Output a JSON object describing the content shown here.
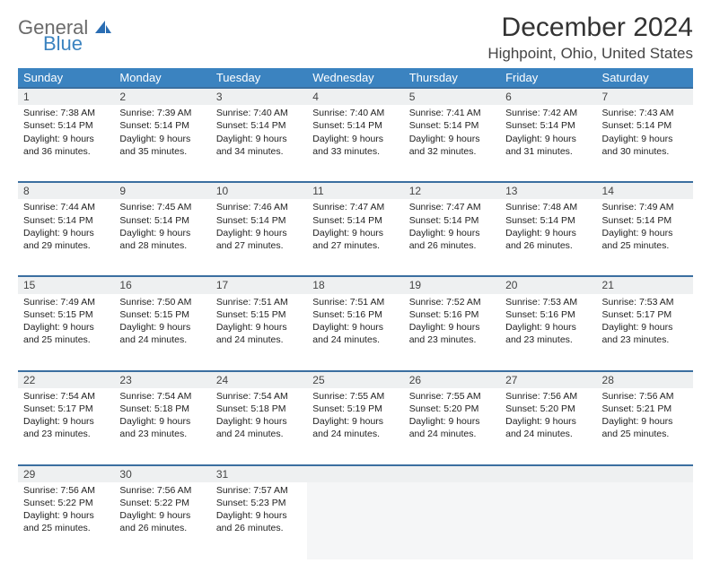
{
  "logo": {
    "line1": "General",
    "line2": "Blue"
  },
  "title": "December 2024",
  "location": "Highpoint, Ohio, United States",
  "colors": {
    "header_bg": "#3b83c0",
    "header_text": "#ffffff",
    "row_divider": "#3b6fa0",
    "daynum_bg": "#eef0f1",
    "body_text": "#222222",
    "page_bg": "#ffffff"
  },
  "dayHeaders": [
    "Sunday",
    "Monday",
    "Tuesday",
    "Wednesday",
    "Thursday",
    "Friday",
    "Saturday"
  ],
  "weeks": [
    [
      {
        "n": "1",
        "sunrise": "Sunrise: 7:38 AM",
        "sunset": "Sunset: 5:14 PM",
        "d1": "Daylight: 9 hours",
        "d2": "and 36 minutes."
      },
      {
        "n": "2",
        "sunrise": "Sunrise: 7:39 AM",
        "sunset": "Sunset: 5:14 PM",
        "d1": "Daylight: 9 hours",
        "d2": "and 35 minutes."
      },
      {
        "n": "3",
        "sunrise": "Sunrise: 7:40 AM",
        "sunset": "Sunset: 5:14 PM",
        "d1": "Daylight: 9 hours",
        "d2": "and 34 minutes."
      },
      {
        "n": "4",
        "sunrise": "Sunrise: 7:40 AM",
        "sunset": "Sunset: 5:14 PM",
        "d1": "Daylight: 9 hours",
        "d2": "and 33 minutes."
      },
      {
        "n": "5",
        "sunrise": "Sunrise: 7:41 AM",
        "sunset": "Sunset: 5:14 PM",
        "d1": "Daylight: 9 hours",
        "d2": "and 32 minutes."
      },
      {
        "n": "6",
        "sunrise": "Sunrise: 7:42 AM",
        "sunset": "Sunset: 5:14 PM",
        "d1": "Daylight: 9 hours",
        "d2": "and 31 minutes."
      },
      {
        "n": "7",
        "sunrise": "Sunrise: 7:43 AM",
        "sunset": "Sunset: 5:14 PM",
        "d1": "Daylight: 9 hours",
        "d2": "and 30 minutes."
      }
    ],
    [
      {
        "n": "8",
        "sunrise": "Sunrise: 7:44 AM",
        "sunset": "Sunset: 5:14 PM",
        "d1": "Daylight: 9 hours",
        "d2": "and 29 minutes."
      },
      {
        "n": "9",
        "sunrise": "Sunrise: 7:45 AM",
        "sunset": "Sunset: 5:14 PM",
        "d1": "Daylight: 9 hours",
        "d2": "and 28 minutes."
      },
      {
        "n": "10",
        "sunrise": "Sunrise: 7:46 AM",
        "sunset": "Sunset: 5:14 PM",
        "d1": "Daylight: 9 hours",
        "d2": "and 27 minutes."
      },
      {
        "n": "11",
        "sunrise": "Sunrise: 7:47 AM",
        "sunset": "Sunset: 5:14 PM",
        "d1": "Daylight: 9 hours",
        "d2": "and 27 minutes."
      },
      {
        "n": "12",
        "sunrise": "Sunrise: 7:47 AM",
        "sunset": "Sunset: 5:14 PM",
        "d1": "Daylight: 9 hours",
        "d2": "and 26 minutes."
      },
      {
        "n": "13",
        "sunrise": "Sunrise: 7:48 AM",
        "sunset": "Sunset: 5:14 PM",
        "d1": "Daylight: 9 hours",
        "d2": "and 26 minutes."
      },
      {
        "n": "14",
        "sunrise": "Sunrise: 7:49 AM",
        "sunset": "Sunset: 5:14 PM",
        "d1": "Daylight: 9 hours",
        "d2": "and 25 minutes."
      }
    ],
    [
      {
        "n": "15",
        "sunrise": "Sunrise: 7:49 AM",
        "sunset": "Sunset: 5:15 PM",
        "d1": "Daylight: 9 hours",
        "d2": "and 25 minutes."
      },
      {
        "n": "16",
        "sunrise": "Sunrise: 7:50 AM",
        "sunset": "Sunset: 5:15 PM",
        "d1": "Daylight: 9 hours",
        "d2": "and 24 minutes."
      },
      {
        "n": "17",
        "sunrise": "Sunrise: 7:51 AM",
        "sunset": "Sunset: 5:15 PM",
        "d1": "Daylight: 9 hours",
        "d2": "and 24 minutes."
      },
      {
        "n": "18",
        "sunrise": "Sunrise: 7:51 AM",
        "sunset": "Sunset: 5:16 PM",
        "d1": "Daylight: 9 hours",
        "d2": "and 24 minutes."
      },
      {
        "n": "19",
        "sunrise": "Sunrise: 7:52 AM",
        "sunset": "Sunset: 5:16 PM",
        "d1": "Daylight: 9 hours",
        "d2": "and 23 minutes."
      },
      {
        "n": "20",
        "sunrise": "Sunrise: 7:53 AM",
        "sunset": "Sunset: 5:16 PM",
        "d1": "Daylight: 9 hours",
        "d2": "and 23 minutes."
      },
      {
        "n": "21",
        "sunrise": "Sunrise: 7:53 AM",
        "sunset": "Sunset: 5:17 PM",
        "d1": "Daylight: 9 hours",
        "d2": "and 23 minutes."
      }
    ],
    [
      {
        "n": "22",
        "sunrise": "Sunrise: 7:54 AM",
        "sunset": "Sunset: 5:17 PM",
        "d1": "Daylight: 9 hours",
        "d2": "and 23 minutes."
      },
      {
        "n": "23",
        "sunrise": "Sunrise: 7:54 AM",
        "sunset": "Sunset: 5:18 PM",
        "d1": "Daylight: 9 hours",
        "d2": "and 23 minutes."
      },
      {
        "n": "24",
        "sunrise": "Sunrise: 7:54 AM",
        "sunset": "Sunset: 5:18 PM",
        "d1": "Daylight: 9 hours",
        "d2": "and 24 minutes."
      },
      {
        "n": "25",
        "sunrise": "Sunrise: 7:55 AM",
        "sunset": "Sunset: 5:19 PM",
        "d1": "Daylight: 9 hours",
        "d2": "and 24 minutes."
      },
      {
        "n": "26",
        "sunrise": "Sunrise: 7:55 AM",
        "sunset": "Sunset: 5:20 PM",
        "d1": "Daylight: 9 hours",
        "d2": "and 24 minutes."
      },
      {
        "n": "27",
        "sunrise": "Sunrise: 7:56 AM",
        "sunset": "Sunset: 5:20 PM",
        "d1": "Daylight: 9 hours",
        "d2": "and 24 minutes."
      },
      {
        "n": "28",
        "sunrise": "Sunrise: 7:56 AM",
        "sunset": "Sunset: 5:21 PM",
        "d1": "Daylight: 9 hours",
        "d2": "and 25 minutes."
      }
    ],
    [
      {
        "n": "29",
        "sunrise": "Sunrise: 7:56 AM",
        "sunset": "Sunset: 5:22 PM",
        "d1": "Daylight: 9 hours",
        "d2": "and 25 minutes."
      },
      {
        "n": "30",
        "sunrise": "Sunrise: 7:56 AM",
        "sunset": "Sunset: 5:22 PM",
        "d1": "Daylight: 9 hours",
        "d2": "and 26 minutes."
      },
      {
        "n": "31",
        "sunrise": "Sunrise: 7:57 AM",
        "sunset": "Sunset: 5:23 PM",
        "d1": "Daylight: 9 hours",
        "d2": "and 26 minutes."
      },
      null,
      null,
      null,
      null
    ]
  ]
}
